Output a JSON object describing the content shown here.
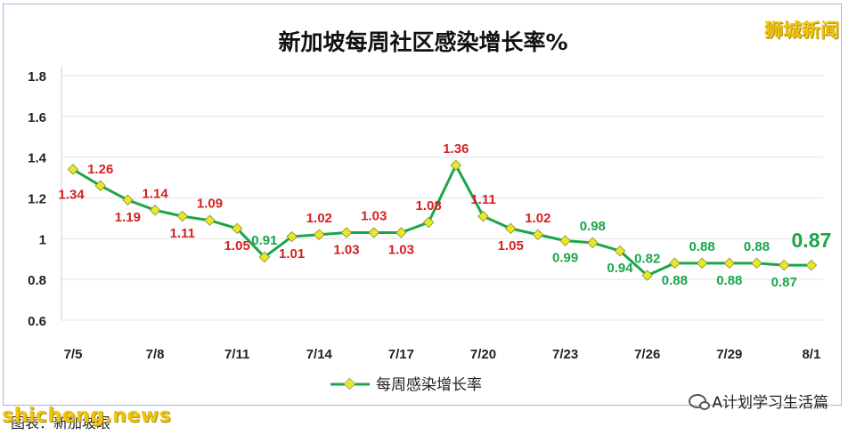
{
  "watermark_top": "狮城新闻",
  "site_watermark": "shicheng.news",
  "source_note": "图表：新加坡眼",
  "wechat_tag": "A计划学习生活篇",
  "colors": {
    "line_green": "#1aa64a",
    "marker_fill": "#e8e82a",
    "label_red": "#d62020",
    "label_green": "#1aa64a",
    "title": "#111111",
    "grid": "#e3e3e3"
  },
  "chart_data": {
    "type": "line",
    "title": "新加坡每周社区感染增长率%",
    "xlabel": "",
    "ylabel": "",
    "ylim": [
      0.6,
      1.8
    ],
    "yticks": [
      "0.6",
      "0.8",
      "1",
      "1.2",
      "1.4",
      "1.6",
      "1.8"
    ],
    "x_tick_labels": [
      "7/5",
      "7/8",
      "7/11",
      "7/14",
      "7/17",
      "7/20",
      "7/23",
      "7/26",
      "7/29",
      "8/1"
    ],
    "legend": {
      "position": "bottom",
      "label": "每周感染增长率"
    },
    "grid": true,
    "series": [
      {
        "name": "每周感染增长率",
        "values": [
          1.34,
          1.26,
          1.19,
          1.14,
          1.11,
          1.09,
          1.05,
          0.91,
          1.01,
          1.02,
          1.03,
          1.03,
          1.03,
          1.08,
          1.36,
          1.11,
          1.05,
          1.02,
          0.99,
          0.98,
          0.94,
          0.82,
          0.88,
          0.88,
          0.88,
          0.88,
          0.87,
          0.87
        ],
        "data_labels": [
          "1.34",
          "1.26",
          "1.19",
          "1.14",
          "1.11",
          "1.09",
          "1.05",
          "0.91",
          "1.01",
          "1.02",
          "1.03",
          "1.03",
          "1.03",
          "1.08",
          "1.36",
          "1.11",
          "1.05",
          "1.02",
          "0.99",
          "0.98",
          "0.94",
          "0.82",
          "0.88",
          "0.88",
          "0.88",
          "0.88",
          "0.87",
          "0.87"
        ]
      }
    ]
  }
}
